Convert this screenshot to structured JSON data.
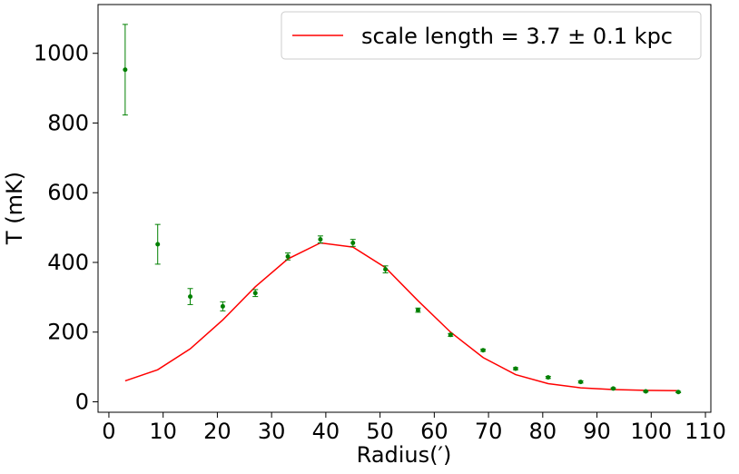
{
  "chart_data": {
    "type": "scatter",
    "xlabel": "Radius(′)",
    "ylabel": "T (mK)",
    "xlim": [
      -2,
      111
    ],
    "ylim": [
      -30,
      1140
    ],
    "xticks": [
      0,
      10,
      20,
      30,
      40,
      50,
      60,
      70,
      80,
      90,
      100,
      110
    ],
    "yticks": [
      0,
      200,
      400,
      600,
      800,
      1000
    ],
    "grid": false,
    "legend_position": "top-right",
    "series": [
      {
        "type": "errorbar",
        "color": "#008000",
        "x": [
          3,
          9,
          15,
          21,
          27,
          33,
          39,
          45,
          51,
          57,
          63,
          69,
          75,
          81,
          87,
          93,
          99,
          105
        ],
        "y": [
          953,
          452,
          302,
          274,
          312,
          417,
          466,
          456,
          380,
          263,
          192,
          148,
          95,
          70,
          57,
          38,
          30,
          28
        ],
        "yerr": [
          130,
          57,
          23,
          13,
          10,
          10,
          10,
          10,
          10,
          6,
          4,
          3,
          3,
          3,
          3,
          2,
          2,
          2
        ]
      },
      {
        "type": "line",
        "name": "scale length = 3.7 ± 0.1 kpc",
        "color": "#ff0000",
        "x": [
          3,
          9,
          15,
          21,
          27,
          33,
          39,
          45,
          51,
          57,
          63,
          69,
          75,
          81,
          87,
          93,
          99,
          105
        ],
        "y": [
          60,
          92,
          152,
          235,
          330,
          410,
          456,
          444,
          385,
          290,
          200,
          127,
          78,
          52,
          40,
          35,
          33,
          32
        ]
      }
    ]
  }
}
